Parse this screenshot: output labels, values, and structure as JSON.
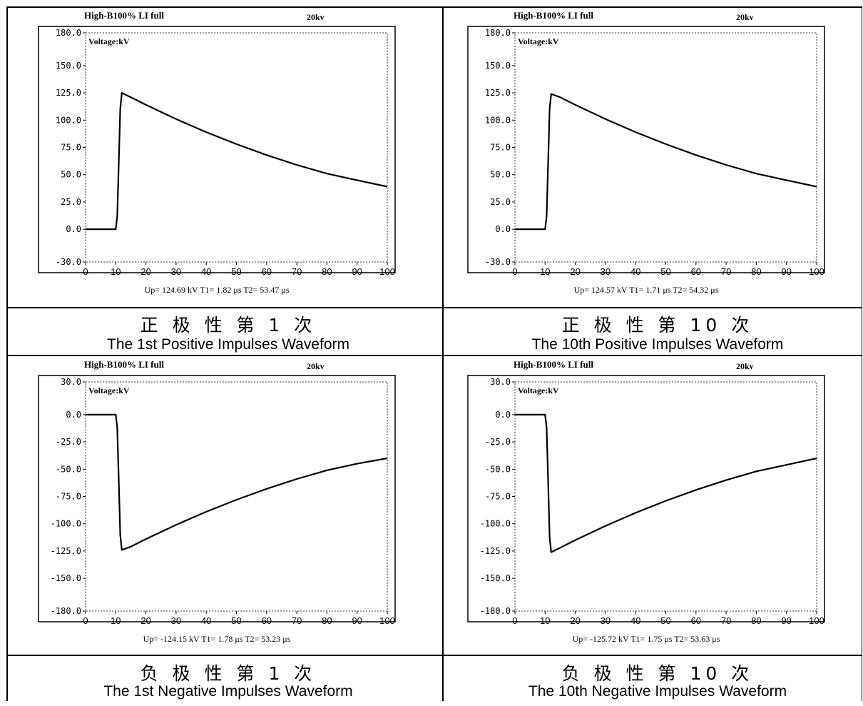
{
  "chart_data": [
    {
      "type": "line",
      "header_left": "High-B100% LI full",
      "header_right": "20kv",
      "ylabel": "Voltage:kV",
      "ylim": [
        -30,
        180
      ],
      "y_ticks": [
        "180.0",
        "150.0",
        "125.0",
        "100.0",
        "75.0",
        "50.0",
        "25.0",
        "0.0",
        "-30.0"
      ],
      "x_ticks": [
        "0",
        "10",
        "20",
        "30",
        "40",
        "50",
        "60",
        "70",
        "80",
        "90",
        "100"
      ],
      "xlim": [
        0,
        100
      ],
      "params": "Up= 124.69 kV  T1= 1.82 μs  T2= 53.47 μs",
      "caption_cn": "正 极 性 第 1 次",
      "caption_en": "The 1st Positive Impulses Waveform",
      "series": [
        {
          "x": [
            0,
            10,
            10.5,
            11,
            11.5,
            12,
            15,
            20,
            30,
            40,
            50,
            60,
            70,
            80,
            90,
            100
          ],
          "values": [
            0,
            0,
            12,
            60,
            110,
            125,
            121,
            114,
            101,
            89,
            78,
            68,
            59,
            51,
            45,
            39
          ]
        }
      ]
    },
    {
      "type": "line",
      "header_left": "High-B100% LI full",
      "header_right": "20kv",
      "ylabel": "Voltage:kV",
      "ylim": [
        -30,
        180
      ],
      "y_ticks": [
        "180.0",
        "150.0",
        "125.0",
        "100.0",
        "75.0",
        "50.0",
        "25.0",
        "0.0",
        "-30.0"
      ],
      "x_ticks": [
        "0",
        "10",
        "20",
        "30",
        "40",
        "50",
        "60",
        "70",
        "80",
        "90",
        "100"
      ],
      "xlim": [
        0,
        100
      ],
      "params": "Up= 124.57 kV  T1= 1.71 μs  T2= 54.32 μs",
      "caption_cn": "正 极 性 第 10 次",
      "caption_en": "The 10th Positive Impulses Waveform",
      "series": [
        {
          "x": [
            0,
            10,
            10.5,
            11,
            11.5,
            12,
            15,
            20,
            30,
            40,
            50,
            60,
            70,
            80,
            90,
            100
          ],
          "values": [
            0,
            0,
            12,
            60,
            110,
            124,
            121,
            114,
            101,
            89,
            78,
            68,
            59,
            51,
            45,
            39
          ]
        }
      ]
    },
    {
      "type": "line",
      "header_left": "High-B100% LI full",
      "header_right": "20kv",
      "ylabel": "Voltage:kV",
      "ylim": [
        -180,
        30
      ],
      "y_ticks": [
        "30.0",
        "0.0",
        "-25.0",
        "-50.0",
        "-75.0",
        "-100.0",
        "-125.0",
        "-150.0",
        "-180.0"
      ],
      "x_ticks": [
        "0",
        "10",
        "20",
        "30",
        "40",
        "50",
        "60",
        "70",
        "80",
        "90",
        "100"
      ],
      "xlim": [
        0,
        100
      ],
      "params": "Up= -124.15 kV  T1= 1.78 μs  T2= 53.23 μs",
      "caption_cn": "负 极 性 第 1 次",
      "caption_en": "The 1st Negative Impulses Waveform",
      "series": [
        {
          "x": [
            0,
            10,
            10.5,
            11,
            11.5,
            12,
            15,
            20,
            30,
            40,
            50,
            60,
            70,
            80,
            90,
            100
          ],
          "values": [
            0,
            0,
            -12,
            -60,
            -110,
            -124,
            -121,
            -114,
            -101,
            -89,
            -78,
            -68,
            -59,
            -51,
            -45,
            -40
          ]
        }
      ]
    },
    {
      "type": "line",
      "header_left": "High-B100% LI full",
      "header_right": "20kv",
      "ylabel": "Voltage:kV",
      "ylim": [
        -180,
        30
      ],
      "y_ticks": [
        "30.0",
        "0.0",
        "-25.0",
        "-50.0",
        "-75.0",
        "-100.0",
        "-125.0",
        "-150.0",
        "-180.0"
      ],
      "x_ticks": [
        "0",
        "10",
        "20",
        "30",
        "40",
        "50",
        "60",
        "70",
        "80",
        "90",
        "100"
      ],
      "xlim": [
        0,
        100
      ],
      "params": "Up= -125.72 kV  T1= 1.75 μs  T2= 53.63 μs",
      "caption_cn": "负 极 性 第 10 次",
      "caption_en": "The 10th Negative Impulses Waveform",
      "series": [
        {
          "x": [
            0,
            10,
            10.5,
            11,
            11.5,
            12,
            15,
            20,
            30,
            40,
            50,
            60,
            70,
            80,
            90,
            100
          ],
          "values": [
            0,
            0,
            -12,
            -60,
            -112,
            -126,
            -122,
            -115,
            -102,
            -90,
            -79,
            -69,
            -60,
            -52,
            -46,
            -40
          ]
        }
      ]
    }
  ]
}
